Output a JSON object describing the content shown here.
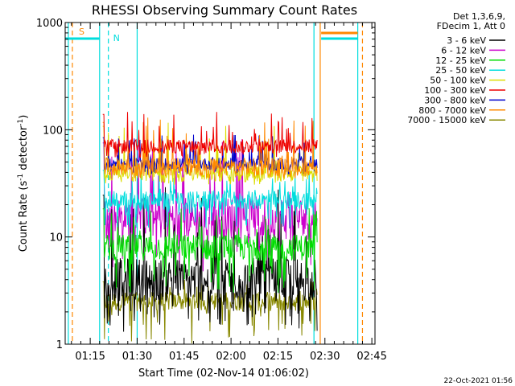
{
  "chart_data": {
    "type": "line",
    "title": "RHESSI Observing Summary Count Rates",
    "xlabel": "Start Time (02-Nov-14 01:06:02)",
    "ylabel_main": "Count Rate (s",
    "ylabel_sup1": "-1",
    "ylabel_mid": " detector",
    "ylabel_sup2": "-1",
    "ylabel_end": ")",
    "yscale": "log",
    "ylim": [
      1,
      1000
    ],
    "xlim_minutes": [
      1.0,
      100.0
    ],
    "x_ticks": [
      "01:15",
      "01:30",
      "01:45",
      "02:00",
      "02:15",
      "02:30",
      "02:45"
    ],
    "y_ticks": [
      "1",
      "10",
      "100",
      "1000"
    ],
    "legend_header": [
      "Det 1,3,6,9,",
      "FDecim 1, Att 0"
    ],
    "series": [
      {
        "name": "3 - 6 keV",
        "color": "#000000",
        "typical": 4,
        "min": 1.3,
        "max": 30
      },
      {
        "name": "6 - 12 keV",
        "color": "#cc00cc",
        "typical": 15,
        "min": 4,
        "max": 90
      },
      {
        "name": "12 - 25 keV",
        "color": "#00dd00",
        "typical": 8,
        "min": 3,
        "max": 20
      },
      {
        "name": "25 - 50 keV",
        "color": "#00dddd",
        "typical": 22,
        "min": 12,
        "max": 45
      },
      {
        "name": "50 - 100 keV",
        "color": "#dddd00",
        "typical": 40,
        "min": 30,
        "max": 120
      },
      {
        "name": "100 - 300 keV",
        "color": "#ee0000",
        "typical": 70,
        "min": 55,
        "max": 150
      },
      {
        "name": "300 - 800 keV",
        "color": "#0000cc",
        "typical": 48,
        "min": 38,
        "max": 90
      },
      {
        "name": "800 - 7000 keV",
        "color": "#ff8800",
        "typical": 45,
        "min": 35,
        "max": 130
      },
      {
        "name": "7000 - 15000 keV",
        "color": "#888800",
        "typical": 2.5,
        "min": 1,
        "max": 4
      }
    ],
    "data_interval_minutes": [
      13.0,
      81.5
    ],
    "saa_flag_label": "S",
    "night_flag_label": "N",
    "footer_date": "22-Oct-2021 01:56"
  }
}
